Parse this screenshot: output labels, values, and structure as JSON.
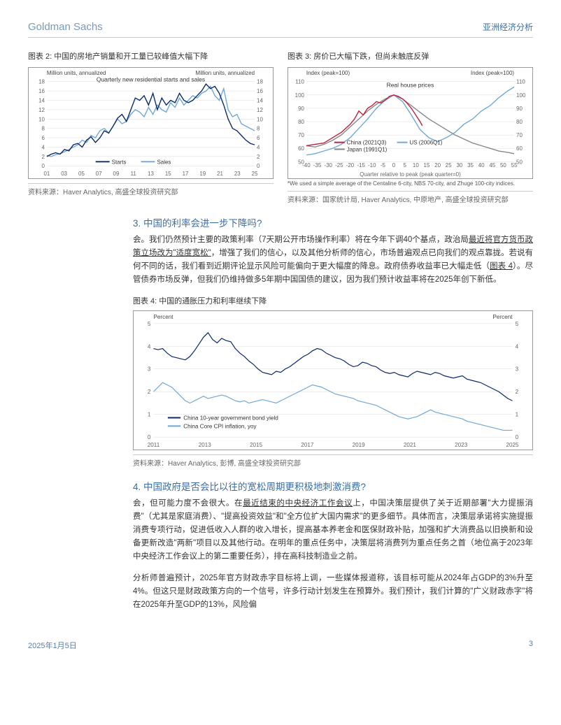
{
  "header": {
    "brand": "Goldman Sachs",
    "doctype": "亚洲经济分析"
  },
  "footer": {
    "date": "2025年1月5日",
    "pageno": "3"
  },
  "chart2": {
    "title": "图表 2: 中国的房地产销量和开工量已较峰值大幅下降",
    "unit_left": "Million units, annualized",
    "unit_right": "Million units, annualized",
    "subtitle": "Quarterly new residential starts and sales",
    "legend": {
      "starts": "Starts",
      "sales": "Sales"
    },
    "x_ticks": [
      "01",
      "03",
      "05",
      "07",
      "09",
      "11",
      "13",
      "15",
      "17",
      "19",
      "21",
      "23",
      "25"
    ],
    "y_ticks": [
      0,
      2,
      4,
      6,
      8,
      10,
      12,
      14,
      16,
      18
    ],
    "ylim": [
      0,
      18
    ],
    "colors": {
      "starts": "#0b2a6b",
      "sales": "#6fa8d6",
      "grid": "#dcdcdc",
      "axis_text": "#666"
    },
    "line_width": 1.4,
    "source": "资料来源：Haver Analytics, 高盛全球投资研究部",
    "starts_data": [
      2.0,
      2.5,
      2.8,
      2.5,
      3.5,
      3.2,
      4.5,
      4.8,
      4.0,
      5.5,
      6.2,
      5.0,
      6.0,
      7.5,
      7.0,
      8.5,
      10.2,
      11.0,
      9.5,
      12.0,
      14.5,
      14.0,
      15.0,
      13.0,
      15.5,
      12.0,
      14.5,
      13.0,
      14.0,
      13.5,
      15.5,
      14.0,
      13.5,
      14.0,
      15.0,
      16.0,
      17.5,
      16.5,
      17.0,
      15.5,
      13.0,
      10.0,
      8.0,
      7.5,
      6.5,
      5.5,
      4.8,
      4.5
    ],
    "sales_data": [
      2.2,
      2.0,
      2.4,
      2.6,
      3.0,
      3.5,
      4.0,
      4.5,
      5.5,
      5.0,
      6.5,
      6.0,
      7.5,
      8.0,
      7.0,
      8.5,
      10.0,
      9.0,
      9.5,
      11.0,
      12.0,
      11.5,
      10.5,
      12.5,
      11.0,
      13.0,
      12.0,
      11.5,
      13.5,
      12.5,
      14.5,
      13.0,
      14.0,
      15.0,
      14.5,
      15.5,
      16.0,
      17.0,
      15.0,
      14.0,
      16.5,
      12.0,
      10.5,
      11.0,
      9.0,
      8.5,
      8.0,
      7.5
    ]
  },
  "chart3": {
    "title": "图表 3: 房价已大幅下跌，但尚未触底反弹",
    "unit_left": "Index (peak=100)",
    "unit_right": "Index (peak=100)",
    "subtitle": "Real house prices",
    "legend": {
      "china": "China (2021Q3)",
      "us": "US (2006Q1)",
      "japan": "Japan (1991Q1)"
    },
    "x_label": "Quarter relative to peak (peak quarter=0)",
    "x_ticks": [
      -40,
      -35,
      -30,
      -25,
      -20,
      -15,
      -10,
      -5,
      0,
      5,
      10,
      15,
      20,
      25,
      30,
      35,
      40,
      45,
      50,
      55
    ],
    "y_ticks": [
      50,
      60,
      70,
      80,
      90,
      100,
      110
    ],
    "ylim": [
      50,
      110
    ],
    "colors": {
      "china": "#c41e3a",
      "us": "#6fa8d6",
      "japan": "#888888",
      "grid": "#dcdcdc"
    },
    "line_width": 1.4,
    "footnote": "*We used a simple average of the Centaline 6-city, NBS 70-city, and Zhuge 100-city indices.",
    "source": "资料来源：国家统计局, Haver Analytics, 中原地产, 高盛全球投资研究部",
    "china_data": [
      [
        -40,
        62
      ],
      [
        -36,
        63
      ],
      [
        -32,
        64
      ],
      [
        -28,
        68
      ],
      [
        -24,
        72
      ],
      [
        -20,
        78
      ],
      [
        -18,
        82
      ],
      [
        -16,
        88
      ],
      [
        -14,
        85
      ],
      [
        -12,
        90
      ],
      [
        -10,
        92
      ],
      [
        -8,
        95
      ],
      [
        -6,
        94
      ],
      [
        -4,
        96
      ],
      [
        -2,
        99
      ],
      [
        0,
        100
      ],
      [
        2,
        99
      ],
      [
        4,
        97
      ],
      [
        6,
        94
      ],
      [
        8,
        90
      ],
      [
        10,
        85
      ],
      [
        12,
        80
      ],
      [
        13,
        77
      ]
    ],
    "us_data": [
      [
        -40,
        55
      ],
      [
        -36,
        56
      ],
      [
        -32,
        58
      ],
      [
        -28,
        60
      ],
      [
        -24,
        63
      ],
      [
        -20,
        68
      ],
      [
        -16,
        75
      ],
      [
        -12,
        82
      ],
      [
        -8,
        90
      ],
      [
        -4,
        96
      ],
      [
        0,
        100
      ],
      [
        4,
        95
      ],
      [
        8,
        85
      ],
      [
        12,
        74
      ],
      [
        16,
        68
      ],
      [
        20,
        65
      ],
      [
        24,
        68
      ],
      [
        28,
        72
      ],
      [
        32,
        78
      ],
      [
        36,
        82
      ],
      [
        40,
        88
      ],
      [
        44,
        92
      ],
      [
        48,
        98
      ],
      [
        52,
        103
      ],
      [
        55,
        106
      ]
    ],
    "japan_data": [
      [
        -40,
        62
      ],
      [
        -36,
        61
      ],
      [
        -32,
        63
      ],
      [
        -28,
        66
      ],
      [
        -24,
        70
      ],
      [
        -20,
        76
      ],
      [
        -16,
        82
      ],
      [
        -12,
        88
      ],
      [
        -8,
        93
      ],
      [
        -4,
        97
      ],
      [
        0,
        100
      ],
      [
        4,
        97
      ],
      [
        8,
        92
      ],
      [
        12,
        87
      ],
      [
        16,
        82
      ],
      [
        20,
        78
      ],
      [
        24,
        74
      ],
      [
        28,
        70
      ],
      [
        32,
        67
      ],
      [
        36,
        64
      ],
      [
        40,
        62
      ],
      [
        44,
        60
      ],
      [
        48,
        58
      ],
      [
        52,
        57
      ],
      [
        55,
        56
      ]
    ]
  },
  "section3": {
    "heading": "3. 中国的利率会进一步下降吗?",
    "para": "会。我们仍然预计主要的政策利率（7天期公开市场操作利率）将在今年下调40个基点，政治局最近将官方货币政策立场改为\"适度宽松\"，增强了我们的信心，以及其他分析师的信心，市场普遍观点已向我们的观点靠拢。若说有何不同的话，我们看到近期评论显示风险可能偏向于更大幅度的降息。政府债券收益率已大幅走低（图表 4）。尽管债券市场反弹，但我们仍维持做多5年期中国国债的建议，因为我们预计收益率将在2025年创下新低。"
  },
  "chart4": {
    "title": "图表 4: 中国的通胀压力和利率继续下降",
    "unit": "Percent",
    "legend": {
      "bond": "China 10-year government bond yield",
      "cpi": "China Core CPI inflation, yoy"
    },
    "x_ticks": [
      "2011",
      "2013",
      "2015",
      "2017",
      "2019",
      "2021",
      "2023",
      "2025"
    ],
    "y_ticks": [
      0,
      1,
      2,
      3,
      4,
      5
    ],
    "ylim": [
      0,
      5
    ],
    "colors": {
      "bond": "#0b2a6b",
      "cpi": "#6fa8d6",
      "grid": "#dcdcdc"
    },
    "line_width": 1.2,
    "source": "资料来源：Haver Analytics, 彭博, 高盛全球投资研究部",
    "bond_data": [
      3.9,
      3.85,
      3.9,
      3.7,
      3.55,
      3.5,
      3.45,
      3.4,
      3.55,
      3.8,
      4.1,
      4.4,
      4.6,
      4.3,
      4.15,
      4.35,
      4.25,
      4.2,
      3.9,
      3.7,
      3.55,
      3.35,
      3.2,
      3.0,
      2.85,
      2.8,
      2.75,
      2.9,
      2.85,
      3.0,
      3.1,
      3.25,
      3.4,
      3.55,
      3.65,
      3.8,
      3.9,
      3.85,
      3.7,
      3.6,
      3.5,
      3.45,
      3.35,
      3.2,
      3.1,
      3.15,
      3.3,
      3.25,
      3.15,
      3.1,
      2.95,
      2.85,
      2.8,
      2.85,
      2.75,
      2.7,
      2.65,
      2.8,
      2.9,
      2.85,
      2.8,
      2.75,
      2.85,
      2.8,
      2.7,
      2.65,
      2.6,
      2.65,
      2.7,
      2.55,
      2.5,
      2.45,
      2.4,
      2.3,
      2.2,
      2.1,
      2.0,
      1.85,
      1.7,
      1.6
    ],
    "cpi_data": [
      2.0,
      2.2,
      2.4,
      2.3,
      2.2,
      2.0,
      1.8,
      1.6,
      1.5,
      1.6,
      1.7,
      1.8,
      1.7,
      1.75,
      1.8,
      1.85,
      1.8,
      1.7,
      1.6,
      1.55,
      1.6,
      1.5,
      1.55,
      1.6,
      1.65,
      1.6,
      1.55,
      1.5,
      1.6,
      1.7,
      1.8,
      1.9,
      2.0,
      2.1,
      2.2,
      2.3,
      2.25,
      2.2,
      2.1,
      2.0,
      1.9,
      1.85,
      1.8,
      1.75,
      1.7,
      1.6,
      1.55,
      1.5,
      1.45,
      1.4,
      1.3,
      1.2,
      1.1,
      1.0,
      0.9,
      0.85,
      0.8,
      0.85,
      0.9,
      1.0,
      1.1,
      1.2,
      1.1,
      1.05,
      1.0,
      0.95,
      0.9,
      0.85,
      0.8,
      0.7,
      0.65,
      0.6,
      0.55,
      0.5,
      0.45,
      0.4,
      0.35,
      0.3,
      0.3,
      0.3
    ]
  },
  "section4": {
    "heading": "4. 中国政府是否会比以往的宽松周期更积极地刺激消费?",
    "para1": "会，但可能力度不会很大。在最近结束的中央经济工作会议上，中国决策层提供了关于近期部署\"大力提振消费\"（尤其是家庭消费）、\"提高投资效益\"和\"全方位扩大国内需求\"的更多细节。具体而言，决策层承诺将实施提振消费专项行动，促进低收入人群的收入增长，提高基本养老金和医保财政补贴，加强和扩大消费品以旧换新和设备更新改造\"两新\"项目以及其他行动。在明年的重点任务中，决策层将消费列为重点任务之首（地位高于2023年中央经济工作会议上的第二重要任务），排在高科技制造业之前。",
    "para2": "分析师普遍预计，2025年官方财政赤字目标将上调，一些媒体报道称，该目标可能从2024年占GDP的3%升至4%。但这只是财政政策方向的一个信号，许多行动计划发生在预算外。我们预计，我们计算的\"广义财政赤字\"将在2025年升至GDP的13%，风险偏"
  }
}
